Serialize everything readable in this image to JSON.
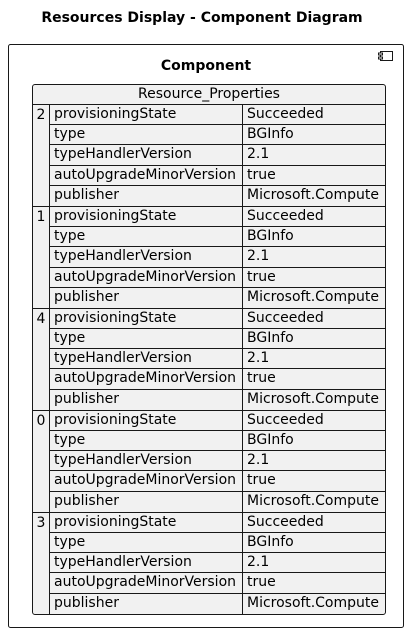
{
  "title": "Resources Display - Component Diagram",
  "component": {
    "name": "Component",
    "icon": "component-icon"
  },
  "table": {
    "header": "Resource_Properties",
    "groups": [
      {
        "key": "2",
        "rows": [
          {
            "k": "provisioningState",
            "v": "Succeeded"
          },
          {
            "k": "type",
            "v": "BGInfo"
          },
          {
            "k": "typeHandlerVersion",
            "v": "2.1"
          },
          {
            "k": "autoUpgradeMinorVersion",
            "v": "true"
          },
          {
            "k": "publisher",
            "v": "Microsoft.Compute"
          }
        ]
      },
      {
        "key": "1",
        "rows": [
          {
            "k": "provisioningState",
            "v": "Succeeded"
          },
          {
            "k": "type",
            "v": "BGInfo"
          },
          {
            "k": "typeHandlerVersion",
            "v": "2.1"
          },
          {
            "k": "autoUpgradeMinorVersion",
            "v": "true"
          },
          {
            "k": "publisher",
            "v": "Microsoft.Compute"
          }
        ]
      },
      {
        "key": "4",
        "rows": [
          {
            "k": "provisioningState",
            "v": "Succeeded"
          },
          {
            "k": "type",
            "v": "BGInfo"
          },
          {
            "k": "typeHandlerVersion",
            "v": "2.1"
          },
          {
            "k": "autoUpgradeMinorVersion",
            "v": "true"
          },
          {
            "k": "publisher",
            "v": "Microsoft.Compute"
          }
        ]
      },
      {
        "key": "0",
        "rows": [
          {
            "k": "provisioningState",
            "v": "Succeeded"
          },
          {
            "k": "type",
            "v": "BGInfo"
          },
          {
            "k": "typeHandlerVersion",
            "v": "2.1"
          },
          {
            "k": "autoUpgradeMinorVersion",
            "v": "true"
          },
          {
            "k": "publisher",
            "v": "Microsoft.Compute"
          }
        ]
      },
      {
        "key": "3",
        "rows": [
          {
            "k": "provisioningState",
            "v": "Succeeded"
          },
          {
            "k": "type",
            "v": "BGInfo"
          },
          {
            "k": "typeHandlerVersion",
            "v": "2.1"
          },
          {
            "k": "autoUpgradeMinorVersion",
            "v": "true"
          },
          {
            "k": "publisher",
            "v": "Microsoft.Compute"
          }
        ]
      }
    ]
  }
}
